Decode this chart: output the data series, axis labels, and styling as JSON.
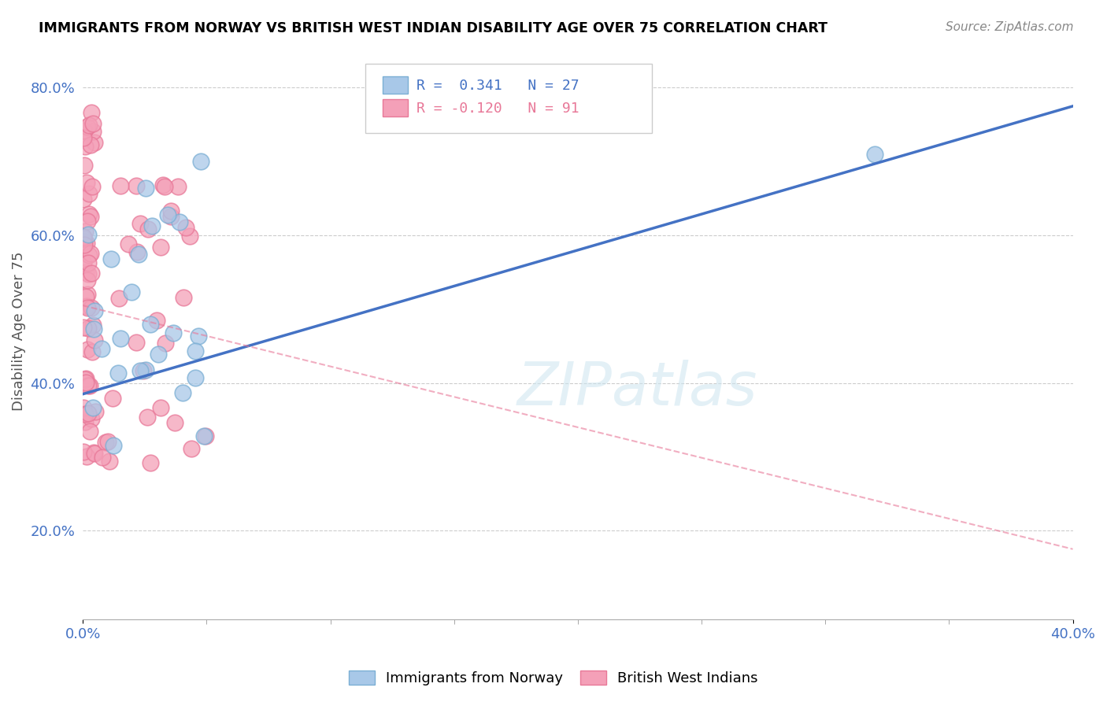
{
  "title": "IMMIGRANTS FROM NORWAY VS BRITISH WEST INDIAN DISABILITY AGE OVER 75 CORRELATION CHART",
  "source": "Source: ZipAtlas.com",
  "ylabel": "Disability Age Over 75",
  "xlim": [
    0.0,
    0.4
  ],
  "ylim": [
    0.08,
    0.86
  ],
  "xtick_positions": [
    0.0,
    0.4
  ],
  "xtick_labels": [
    "0.0%",
    "40.0%"
  ],
  "ytick_positions": [
    0.2,
    0.4,
    0.6,
    0.8
  ],
  "ytick_labels": [
    "20.0%",
    "40.0%",
    "60.0%",
    "80.0%"
  ],
  "norway_R": 0.341,
  "norway_N": 27,
  "bwi_R": -0.12,
  "bwi_N": 91,
  "norway_color": "#a8c8e8",
  "bwi_color": "#f4a0b8",
  "norway_edge_color": "#7bafd4",
  "bwi_edge_color": "#e87898",
  "norway_line_color": "#4472c4",
  "bwi_line_color": "#e87898",
  "grid_color": "#cccccc",
  "watermark": "ZIPatlas",
  "norway_line_x": [
    0.0,
    0.4
  ],
  "norway_line_y": [
    0.385,
    0.775
  ],
  "bwi_line_x": [
    0.0,
    0.4
  ],
  "bwi_line_y": [
    0.505,
    0.175
  ]
}
